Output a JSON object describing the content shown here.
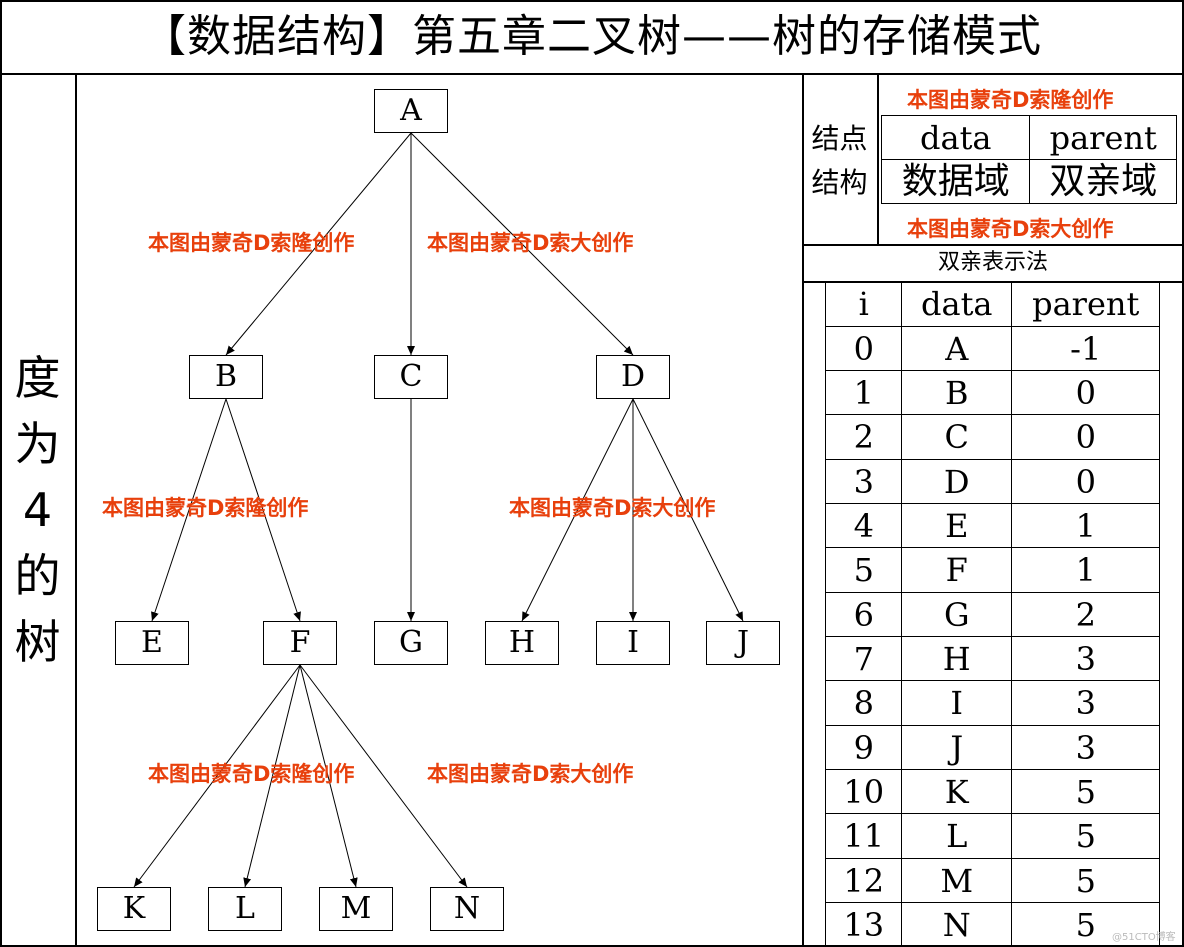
{
  "title": "【数据结构】第五章二叉树——树的存储模式",
  "side_label": [
    "度",
    "为",
    "4",
    "的",
    "树"
  ],
  "tree": {
    "nodes": [
      "A",
      "B",
      "C",
      "D",
      "E",
      "F",
      "G",
      "H",
      "I",
      "J",
      "K",
      "L",
      "M",
      "N"
    ]
  },
  "watermarks": [
    "本图由蒙奇D索隆创作",
    "本图由蒙奇D索大创作",
    "本图由蒙奇D索隆创作",
    "本图由蒙奇D索大创作",
    "本图由蒙奇D索隆创作",
    "本图由蒙奇D索大创作"
  ],
  "node_structure": {
    "label": [
      "结点",
      "结构"
    ],
    "watermark_top": "本图由蒙奇D索隆创作",
    "watermark_bottom": "本图由蒙奇D索大创作",
    "headers": [
      "data",
      "parent"
    ],
    "descriptions": [
      "数据域",
      "双亲域"
    ]
  },
  "parent_table": {
    "title": "双亲表示法",
    "headers": [
      "i",
      "data",
      "parent"
    ],
    "rows": [
      [
        "0",
        "A",
        "-1"
      ],
      [
        "1",
        "B",
        "0"
      ],
      [
        "2",
        "C",
        "0"
      ],
      [
        "3",
        "D",
        "0"
      ],
      [
        "4",
        "E",
        "1"
      ],
      [
        "5",
        "F",
        "1"
      ],
      [
        "6",
        "G",
        "2"
      ],
      [
        "7",
        "H",
        "3"
      ],
      [
        "8",
        "I",
        "3"
      ],
      [
        "9",
        "J",
        "3"
      ],
      [
        "10",
        "K",
        "5"
      ],
      [
        "11",
        "L",
        "5"
      ],
      [
        "12",
        "M",
        "5"
      ],
      [
        "13",
        "N",
        "5"
      ]
    ]
  },
  "footer_watermark": "@51CTO博客"
}
